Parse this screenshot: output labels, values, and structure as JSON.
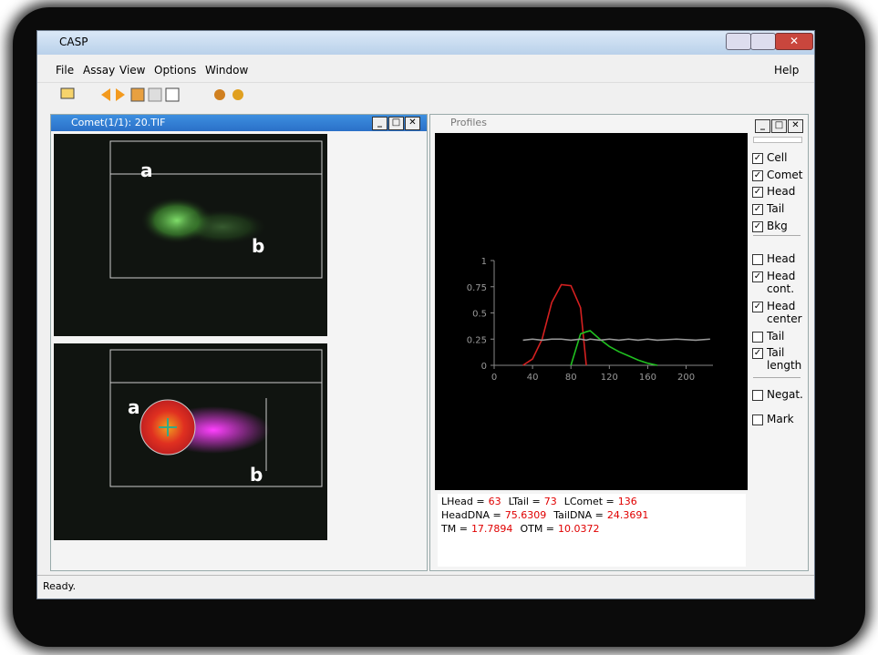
{
  "window": {
    "title": "CASP",
    "menu": [
      "File",
      "Assay",
      "View",
      "Options",
      "Window"
    ],
    "help": "Help",
    "status": "Ready."
  },
  "comet_window": {
    "title": "Comet(1/1): 20.TIF",
    "labels": [
      "a",
      "b",
      "a",
      "b"
    ]
  },
  "profiles": {
    "title": "Profiles",
    "chart_data": {
      "type": "line",
      "x": [
        30,
        40,
        50,
        60,
        70,
        80,
        90,
        96,
        100,
        110,
        120,
        130,
        140,
        150,
        160,
        170,
        190,
        210,
        225
      ],
      "series": [
        {
          "color": "#d42020",
          "values": [
            0,
            0.06,
            0.25,
            0.6,
            0.77,
            0.76,
            0.55,
            0,
            null,
            null,
            null,
            null,
            null,
            null,
            null,
            null,
            null,
            null,
            null
          ]
        },
        {
          "color": "#20c020",
          "values": [
            null,
            null,
            null,
            null,
            null,
            0,
            0.3,
            0.32,
            0.33,
            0.25,
            0.18,
            0.13,
            0.09,
            0.05,
            0.02,
            0,
            null,
            null,
            null
          ]
        },
        {
          "color": "#9a9a9a",
          "values": [
            0.24,
            0.25,
            0.24,
            0.25,
            0.25,
            0.24,
            0.25,
            0.24,
            0.25,
            0.24,
            0.25,
            0.24,
            0.25,
            0.24,
            0.25,
            0.24,
            0.25,
            0.24,
            0.25
          ]
        }
      ],
      "xlim": [
        0,
        228
      ],
      "ylim": [
        0,
        1
      ],
      "xticks": [
        0,
        40,
        80,
        120,
        160,
        200
      ],
      "yticks": [
        0,
        0.25,
        0.5,
        0.75,
        1
      ]
    },
    "checkboxes": [
      {
        "label": "Cell",
        "checked": true
      },
      {
        "label": "Comet",
        "checked": true
      },
      {
        "label": "Head",
        "checked": true
      },
      {
        "label": "Tail",
        "checked": true
      },
      {
        "label": "Bkg",
        "checked": true
      },
      {
        "label": "Head",
        "checked": false
      },
      {
        "label": "Head cont.",
        "checked": true
      },
      {
        "label": "Head center",
        "checked": true
      },
      {
        "label": "Tail",
        "checked": false
      },
      {
        "label": "Tail length",
        "checked": true
      },
      {
        "label": "Negat.",
        "checked": false
      },
      {
        "label": "Mark",
        "checked": false
      }
    ],
    "results": [
      [
        {
          "label": "LHead =",
          "value": 63
        },
        {
          "label": "LTail =",
          "value": 73
        },
        {
          "label": "LComet =",
          "value": 136
        }
      ],
      [
        {
          "label": "HeadDNA =",
          "value": 75.6309
        },
        {
          "label": "TailDNA =",
          "value": 24.3691
        }
      ],
      [
        {
          "label": "TM =",
          "value": 17.7894
        },
        {
          "label": "OTM =",
          "value": 10.0372
        }
      ]
    ]
  }
}
